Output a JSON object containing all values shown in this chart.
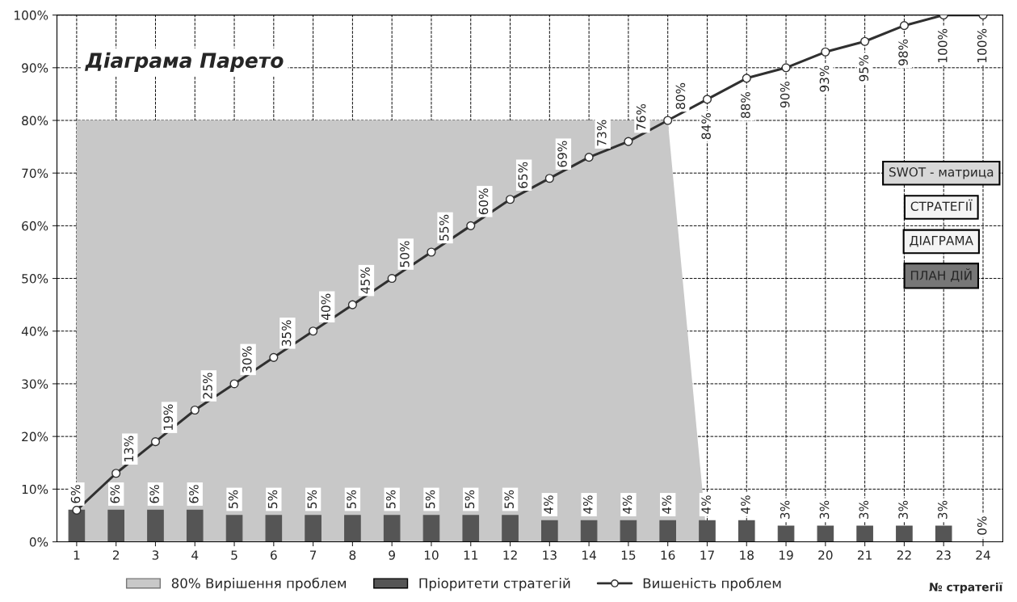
{
  "chart_data": {
    "type": "bar",
    "title": "Діаграма Парето",
    "xlabel": "№ стратегії",
    "categories": [
      "1",
      "2",
      "3",
      "4",
      "5",
      "6",
      "7",
      "8",
      "9",
      "10",
      "11",
      "12",
      "13",
      "14",
      "15",
      "16",
      "17",
      "18",
      "19",
      "20",
      "21",
      "22",
      "23",
      "24"
    ],
    "series": [
      {
        "name": "80% Вирішення проблем",
        "type": "area",
        "color": "#c8c8c8",
        "values": [
          80,
          80,
          80,
          80,
          80,
          80,
          80,
          80,
          80,
          80,
          80,
          80,
          80,
          80,
          80,
          80,
          0,
          null,
          null,
          null,
          null,
          null,
          null,
          null
        ]
      },
      {
        "name": "Пріоритети стратегій",
        "color": "#555555",
        "values": [
          6,
          6,
          6,
          6,
          5,
          5,
          5,
          5,
          5,
          5,
          5,
          5,
          4,
          4,
          4,
          4,
          4,
          4,
          3,
          3,
          3,
          3,
          3,
          0
        ],
        "value_labels": [
          "6%",
          "6%",
          "6%",
          "6%",
          "5%",
          "5%",
          "5%",
          "5%",
          "5%",
          "5%",
          "5%",
          "5%",
          "4%",
          "4%",
          "4%",
          "4%",
          "4%",
          "4%",
          "3%",
          "3%",
          "3%",
          "3%",
          "3%",
          "0%"
        ]
      },
      {
        "name": "Вишеність проблем",
        "type": "line",
        "color": "#303030",
        "marker": "circle",
        "values": [
          6,
          13,
          19,
          25,
          30,
          35,
          40,
          45,
          50,
          55,
          60,
          65,
          69,
          73,
          76,
          80,
          84,
          88,
          90,
          93,
          95,
          98,
          100,
          100
        ],
        "value_labels": [
          null,
          "13%",
          "19%",
          "25%",
          "30%",
          "35%",
          "40%",
          "45%",
          "50%",
          "55%",
          "60%",
          "65%",
          "69%",
          "73%",
          "76%",
          "80%",
          "84%",
          "88%",
          "90%",
          "93%",
          "95%",
          "98%",
          "100%",
          "100%"
        ]
      }
    ],
    "ylim": [
      0,
      100
    ],
    "yticks": [
      {
        "value": 0,
        "label": "0%"
      },
      {
        "value": 10,
        "label": "10%"
      },
      {
        "value": 20,
        "label": "20%"
      },
      {
        "value": 30,
        "label": "30%"
      },
      {
        "value": 40,
        "label": "40%"
      },
      {
        "value": 50,
        "label": "50%"
      },
      {
        "value": 60,
        "label": "60%"
      },
      {
        "value": 70,
        "label": "70%"
      },
      {
        "value": 80,
        "label": "80%"
      },
      {
        "value": 90,
        "label": "90%"
      },
      {
        "value": 100,
        "label": "100%"
      }
    ],
    "grid": true,
    "legend": "bottom",
    "annotations": [
      "SWOT - матрица",
      "СТРАТЕГІЇ",
      "ДІАГРАМА",
      "ПЛАН ДІЙ"
    ]
  }
}
